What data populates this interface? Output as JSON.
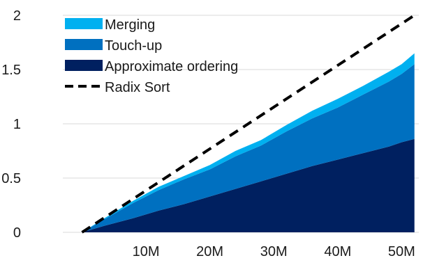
{
  "chart_data": {
    "type": "area",
    "stacked": true,
    "x": [
      0,
      3.5,
      8,
      12,
      16,
      20,
      24,
      28,
      32,
      36,
      40,
      44,
      48,
      50,
      52
    ],
    "xticks": [
      10,
      20,
      30,
      40,
      50
    ],
    "xtick_labels": [
      "10M",
      "20M",
      "30M",
      "40M",
      "50M"
    ],
    "xlim": [
      -3,
      54
    ],
    "ylim": [
      0,
      2
    ],
    "yticks": [
      0,
      0.5,
      1,
      1.5,
      2
    ],
    "ytick_labels": [
      "0",
      "0.5",
      "1",
      "1.5",
      "2"
    ],
    "grid": "horizontal",
    "series": [
      {
        "name": "Approximate ordering",
        "color": "#002060",
        "values": [
          0.0,
          0.06,
          0.13,
          0.2,
          0.26,
          0.33,
          0.4,
          0.47,
          0.54,
          0.61,
          0.67,
          0.73,
          0.79,
          0.83,
          0.86
        ]
      },
      {
        "name": "Touch-up",
        "color": "#0070C0",
        "values": [
          0.0,
          0.06,
          0.14,
          0.19,
          0.23,
          0.25,
          0.3,
          0.33,
          0.39,
          0.44,
          0.48,
          0.54,
          0.6,
          0.63,
          0.69
        ]
      },
      {
        "name": "Merging",
        "color": "#00B0F0",
        "values": [
          0.0,
          0.01,
          0.02,
          0.03,
          0.03,
          0.04,
          0.05,
          0.05,
          0.06,
          0.07,
          0.08,
          0.08,
          0.09,
          0.09,
          0.1
        ]
      }
    ],
    "reference_line": {
      "name": "Radix Sort",
      "style": "dashed",
      "color": "#000000",
      "x": [
        0,
        52
      ],
      "y": [
        0,
        2.0
      ]
    },
    "legend": {
      "placement": "top-left",
      "order": [
        "Merging",
        "Touch-up",
        "Approximate ordering",
        "Radix Sort"
      ]
    }
  },
  "legend": {
    "items": [
      {
        "label": "Merging",
        "color": "#00B0F0",
        "kind": "area"
      },
      {
        "label": "Touch-up",
        "color": "#0070C0",
        "kind": "area"
      },
      {
        "label": "Approximate ordering",
        "color": "#002060",
        "kind": "area"
      },
      {
        "label": "Radix Sort",
        "color": "#000000",
        "kind": "dashed-line"
      }
    ]
  }
}
